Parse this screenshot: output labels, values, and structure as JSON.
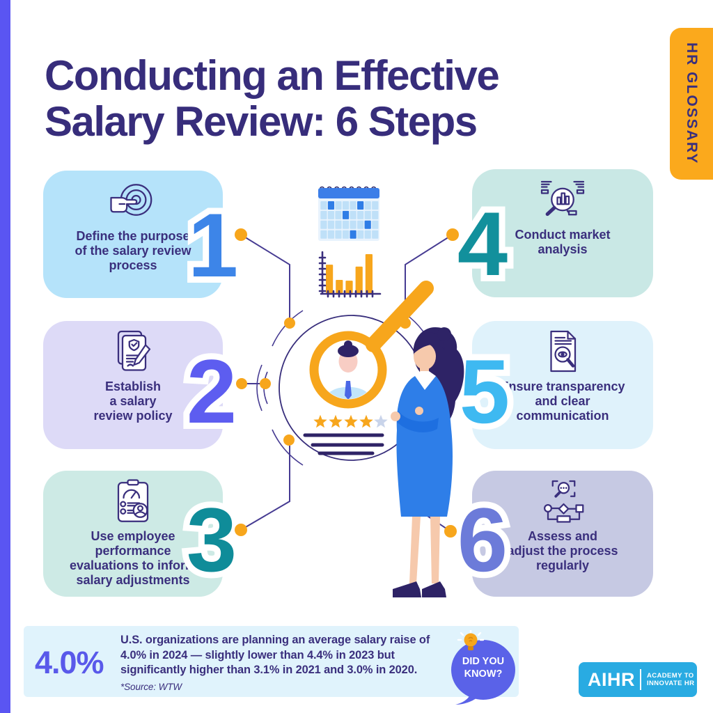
{
  "badge": {
    "label": "HR GLOSSARY"
  },
  "title": {
    "line1": "Conducting an Effective",
    "line2": "Salary Review: 6 Steps"
  },
  "steps": [
    {
      "number": "1",
      "lines": [
        "Define the purpose",
        "of the salary review",
        "process"
      ],
      "box_color": "#b5e3fa",
      "number_color": "#3d85e8",
      "icon": "target-press-icon"
    },
    {
      "number": "2",
      "lines": [
        "Establish",
        "a salary",
        "review policy"
      ],
      "box_color": "#dddaf7",
      "number_color": "#5d5df0",
      "icon": "policy-document-icon"
    },
    {
      "number": "3",
      "lines": [
        "Use employee",
        "performance",
        "evaluations to inform",
        "salary adjustments"
      ],
      "box_color": "#cdeae5",
      "number_color": "#0f8c99",
      "icon": "performance-clipboard-icon"
    },
    {
      "number": "4",
      "lines": [
        "Conduct market",
        "analysis"
      ],
      "box_color": "#c9e8e5",
      "number_color": "#12909c",
      "icon": "market-analysis-icon"
    },
    {
      "number": "5",
      "lines": [
        "Ensure transparency",
        "and clear",
        "communication"
      ],
      "box_color": "#dff2fb",
      "number_color": "#3eb9f1",
      "icon": "transparency-document-icon"
    },
    {
      "number": "6",
      "lines": [
        "Assess and",
        "adjust the process",
        "regularly"
      ],
      "box_color": "#c6c9e3",
      "number_color": "#6c7bd9",
      "icon": "assess-flowchart-icon"
    }
  ],
  "footer": {
    "stat": "4.0%",
    "text": "U.S. organizations are planning an average salary raise of 4.0% in 2024 — slightly lower than 4.4% in 2023 but significantly higher than 3.1% in 2021 and 3.0% in 2020.",
    "source": "*Source: WTW",
    "did_you_know_line1": "DID YOU",
    "did_you_know_line2": "KNOW?"
  },
  "logo": {
    "brand": "AIHR",
    "tagline_line1": "ACADEMY TO",
    "tagline_line2": "INNOVATE HR"
  },
  "colors": {
    "accent_orange": "#f7a61c",
    "badge_bg": "#fba91c",
    "stripe": "#5a55f2",
    "title_text": "#372d7b",
    "step_text": "#3a2f7d",
    "banner_bg": "#e0f3fc",
    "stat_text": "#5959ea",
    "bubble_bg": "#5a62e8",
    "logo_bg": "#29abe2",
    "connector": "#463b92"
  },
  "illustration": {
    "calendar": {
      "rows": 4,
      "cols": 8,
      "highlighted_cells": [
        [
          0,
          1
        ],
        [
          0,
          5
        ],
        [
          1,
          3
        ],
        [
          2,
          6
        ],
        [
          3,
          4
        ]
      ],
      "header_color": "#3c7ee8",
      "cell_color": "#bfe0f8",
      "highlight_color": "#2f7de6"
    },
    "bar_chart": {
      "values": [
        73,
        34,
        32,
        68,
        100
      ],
      "bar_color": "#f7a61c",
      "axis_color": "#3a2f7d"
    },
    "rating": {
      "filled": 4,
      "total": 5,
      "star_color": "#f7a61c",
      "empty_star_color": "#c9d4ea"
    }
  }
}
